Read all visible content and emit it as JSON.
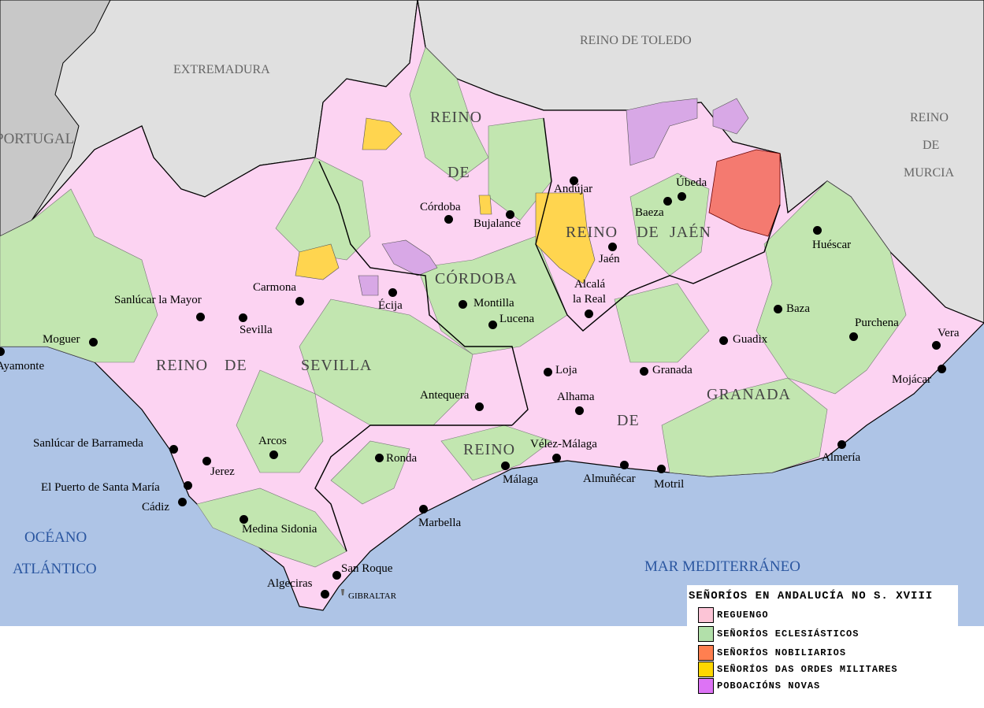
{
  "colors": {
    "sea": "#aec4e6",
    "outside": "#e0e0e0",
    "portugal": "#c8c8c8",
    "reguengo": "#fcd3f2",
    "eclesiasticos": "#c2e6b0",
    "nobiliarios": "#f47a70",
    "ordes_militares": "#ffd54f",
    "poboacions_novas": "#d8a8e6"
  },
  "outer_regions": [
    "EXTREMADURA",
    "REINO DE TOLEDO",
    "PORTUGAL",
    "REINO",
    "DE",
    "MURCIA"
  ],
  "seas": [
    "OCÉANO",
    "ATLÁNTICO",
    "MAR MEDITERRÁNEO"
  ],
  "kingdoms": [
    "REINO",
    "DE",
    "CÓRDOBA",
    "REINO",
    "DE",
    "JAÉN",
    "REINO",
    "DE",
    "SEVILLA",
    "REINO",
    "DE",
    "GRANADA"
  ],
  "cities": [
    "Andújar",
    "Úbeda",
    "Baeza",
    "Córdoba",
    "Bujalance",
    "Jaén",
    "Huéscar",
    "Carmona",
    "Écija",
    "Montilla",
    "Lucena",
    "Alcalá",
    "la Real",
    "Sanlúcar la Mayor",
    "Sevilla",
    "Baza",
    "Purchena",
    "Moguer",
    "Guadix",
    "Vera",
    "Ayamonte",
    "Loja",
    "Granada",
    "Mojácar",
    "Antequera",
    "Alhama",
    "Sanlúcar de Barrameda",
    "Arcos",
    "Ronda",
    "Vélez-Málaga",
    "Jerez",
    "Málaga",
    "Almuñécar",
    "Motril",
    "Almería",
    "El Puerto de Santa María",
    "Cádiz",
    "Medina Sidonia",
    "Marbella",
    "San Roque",
    "Algeciras",
    "GIBRALTAR"
  ],
  "legend": {
    "title": "SEÑORÍOS EN ANDALUCÍA NO S. XVIII",
    "items": [
      {
        "label": "REGUENGO",
        "color": "#fcc4d6"
      },
      {
        "label": "SEÑORÍOS ECLESIÁSTICOS",
        "color": "#b2e0aa"
      },
      {
        "label": "SEÑORÍOS NOBILIARIOS",
        "color": "#ff7f50"
      },
      {
        "label": "SEÑORÍOS DAS ORDES MILITARES",
        "color": "#ffd700"
      },
      {
        "label": "POBOACIÓNS NOVAS",
        "color": "#dd73f5"
      }
    ]
  }
}
